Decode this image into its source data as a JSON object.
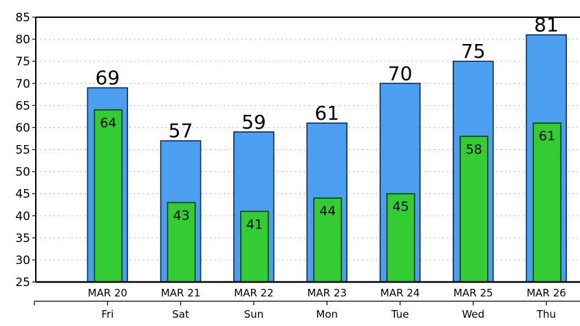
{
  "chart_data": {
    "type": "bar",
    "categories": [
      "MAR 20",
      "MAR 21",
      "MAR 22",
      "MAR 23",
      "MAR 24",
      "MAR 25",
      "MAR 26"
    ],
    "days": [
      "Fri",
      "Sat",
      "Sun",
      "Mon",
      "Tue",
      "Wed",
      "Thu"
    ],
    "series": [
      {
        "values": [
          69,
          57,
          59,
          61,
          70,
          75,
          81
        ],
        "color": "#4c9ff0"
      },
      {
        "values": [
          64,
          43,
          41,
          44,
          45,
          58,
          61
        ],
        "color": "#33cc33"
      }
    ],
    "ylim": [
      25,
      85
    ],
    "yticks": [
      25,
      30,
      35,
      40,
      45,
      50,
      55,
      60,
      65,
      70,
      75,
      80,
      85
    ],
    "grid": true,
    "title": "",
    "xlabel": "",
    "ylabel": ""
  }
}
